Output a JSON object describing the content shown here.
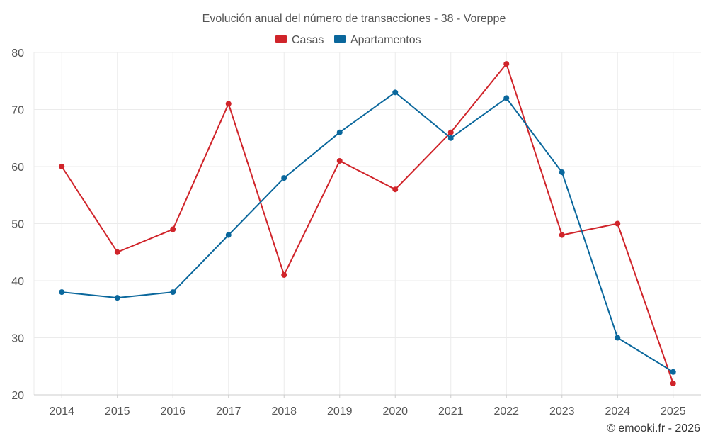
{
  "chart_data": {
    "type": "line",
    "title": "Evolución anual del número de transacciones - 38 - Voreppe",
    "categories": [
      "2014",
      "2015",
      "2016",
      "2017",
      "2018",
      "2019",
      "2020",
      "2021",
      "2022",
      "2023",
      "2024",
      "2025"
    ],
    "series": [
      {
        "name": "Casas",
        "color": "#d0242a",
        "values": [
          60,
          45,
          49,
          71,
          41,
          61,
          56,
          66,
          78,
          48,
          50,
          22
        ]
      },
      {
        "name": "Apartamentos",
        "color": "#0a679c",
        "values": [
          38,
          37,
          38,
          48,
          58,
          66,
          73,
          65,
          72,
          59,
          30,
          24
        ]
      }
    ],
    "ylim": [
      20,
      80
    ],
    "yticks": [
      20,
      30,
      40,
      50,
      60,
      70,
      80
    ],
    "ytick_labels": [
      "20",
      "30",
      "40",
      "50",
      "60",
      "70",
      "80"
    ],
    "xlabel": "",
    "ylabel": "",
    "grid": true,
    "legend_position": "top-center"
  },
  "credit": "© emooki.fr - 2026"
}
